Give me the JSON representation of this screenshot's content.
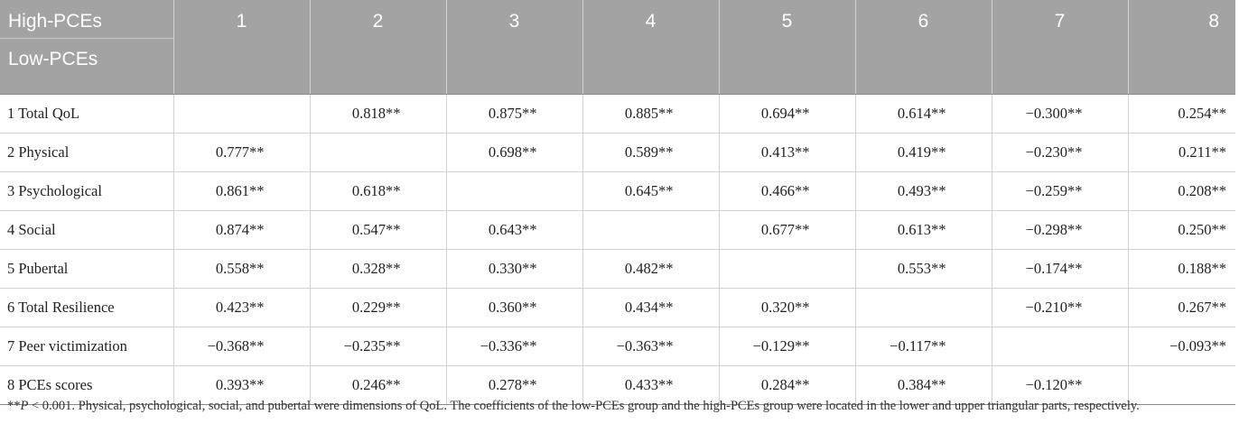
{
  "header": {
    "corner_top": "High-PCEs",
    "corner_bottom": "Low-PCEs",
    "columns": [
      "1",
      "2",
      "3",
      "4",
      "5",
      "6",
      "7",
      "8"
    ]
  },
  "rows": [
    {
      "label": "1 Total QoL",
      "cells": [
        "",
        "0.818**",
        "0.875**",
        "0.885**",
        "0.694**",
        "0.614**",
        "−0.300**",
        "0.254**"
      ]
    },
    {
      "label": "2 Physical",
      "cells": [
        "0.777**",
        "",
        "0.698**",
        "0.589**",
        "0.413**",
        "0.419**",
        "−0.230**",
        "0.211**"
      ]
    },
    {
      "label": "3 Psychological",
      "cells": [
        "0.861**",
        "0.618**",
        "",
        "0.645**",
        "0.466**",
        "0.493**",
        "−0.259**",
        "0.208**"
      ]
    },
    {
      "label": "4 Social",
      "cells": [
        "0.874**",
        "0.547**",
        "0.643**",
        "",
        "0.677**",
        "0.613**",
        "−0.298**",
        "0.250**"
      ]
    },
    {
      "label": "5 Pubertal",
      "cells": [
        "0.558**",
        "0.328**",
        "0.330**",
        "0.482**",
        "",
        "0.553**",
        "−0.174**",
        "0.188**"
      ]
    },
    {
      "label": "6 Total Resilience",
      "cells": [
        "0.423**",
        "0.229**",
        "0.360**",
        "0.434**",
        "0.320**",
        "",
        "−0.210**",
        "0.267**"
      ]
    },
    {
      "label": "7 Peer victimization",
      "cells": [
        "−0.368**",
        "−0.235**",
        "−0.336**",
        "−0.363**",
        "−0.129**",
        "−0.117**",
        "",
        "−0.093**"
      ]
    },
    {
      "label": "8 PCEs scores",
      "cells": [
        "0.393**",
        "0.246**",
        "0.278**",
        "0.433**",
        "0.284**",
        "0.384**",
        "−0.120**",
        ""
      ]
    }
  ],
  "footnote": {
    "stars": "**",
    "p_symbol": "P",
    "rest": " < 0.001. Physical, psychological, social, and pubertal were dimensions of QoL. The coefficients of the low-PCEs group and the high-PCEs group were located in the lower and upper triangular parts, respectively."
  }
}
